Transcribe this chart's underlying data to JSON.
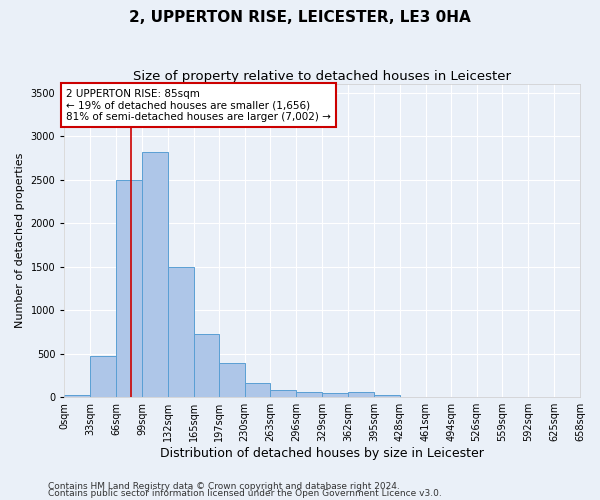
{
  "title": "2, UPPERTON RISE, LEICESTER, LE3 0HA",
  "subtitle": "Size of property relative to detached houses in Leicester",
  "xlabel": "Distribution of detached houses by size in Leicester",
  "ylabel": "Number of detached properties",
  "bin_labels": [
    "0sqm",
    "33sqm",
    "66sqm",
    "99sqm",
    "132sqm",
    "165sqm",
    "197sqm",
    "230sqm",
    "263sqm",
    "296sqm",
    "329sqm",
    "362sqm",
    "395sqm",
    "428sqm",
    "461sqm",
    "494sqm",
    "526sqm",
    "559sqm",
    "592sqm",
    "625sqm",
    "658sqm"
  ],
  "bin_edges": [
    0,
    33,
    66,
    99,
    132,
    165,
    197,
    230,
    263,
    296,
    329,
    362,
    395,
    428,
    461,
    494,
    526,
    559,
    592,
    625,
    658
  ],
  "bar_heights": [
    20,
    470,
    2500,
    2820,
    1500,
    730,
    390,
    160,
    80,
    65,
    50,
    55,
    20,
    5,
    2,
    2,
    2,
    0,
    0,
    0
  ],
  "bar_color": "#aec6e8",
  "bar_edge_color": "#5a9fd4",
  "bg_color": "#eaf0f8",
  "grid_color": "#ffffff",
  "property_sqm": 85,
  "vline_color": "#cc0000",
  "annotation_text": "2 UPPERTON RISE: 85sqm\n← 19% of detached houses are smaller (1,656)\n81% of semi-detached houses are larger (7,002) →",
  "annotation_box_color": "#ffffff",
  "annotation_box_edge_color": "#cc0000",
  "ylim": [
    0,
    3600
  ],
  "yticks": [
    0,
    500,
    1000,
    1500,
    2000,
    2500,
    3000,
    3500
  ],
  "footer1": "Contains HM Land Registry data © Crown copyright and database right 2024.",
  "footer2": "Contains public sector information licensed under the Open Government Licence v3.0.",
  "title_fontsize": 11,
  "subtitle_fontsize": 9.5,
  "xlabel_fontsize": 9,
  "ylabel_fontsize": 8,
  "tick_fontsize": 7,
  "footer_fontsize": 6.5,
  "annotation_fontsize": 7.5
}
